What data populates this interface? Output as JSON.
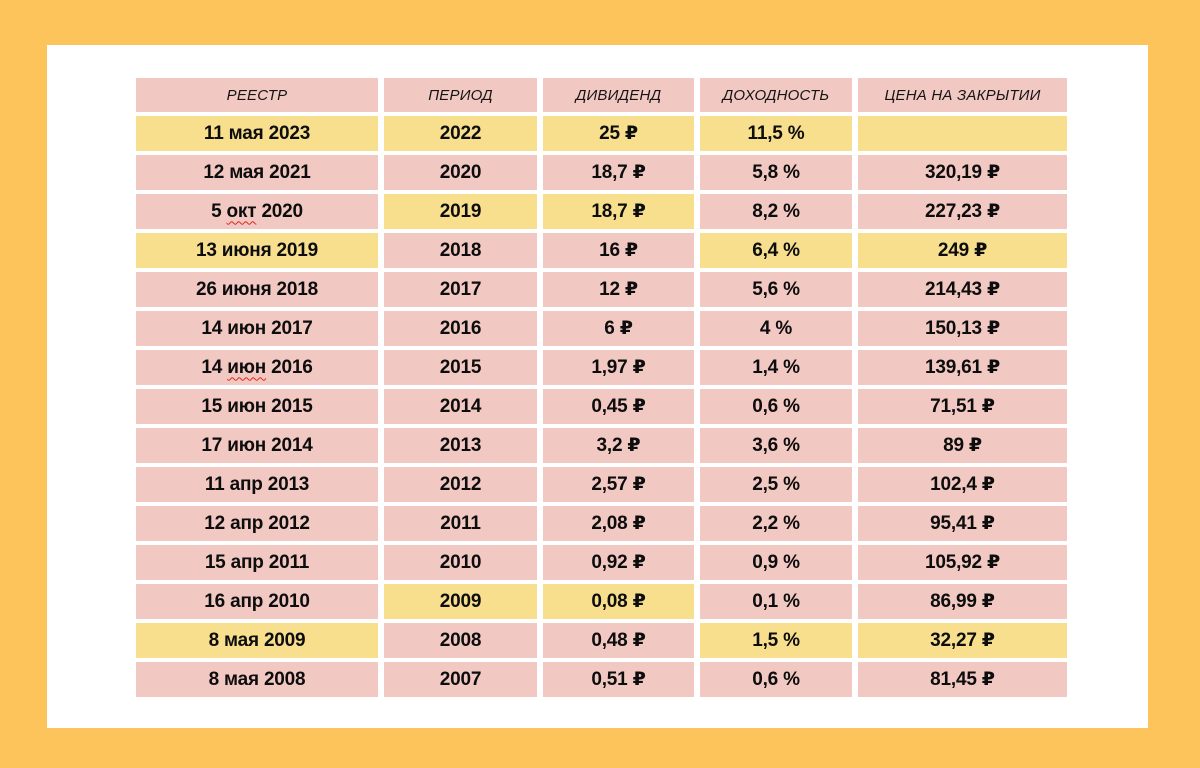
{
  "chart_data": {
    "type": "table",
    "columns": [
      "РЕЕСТР",
      "ПЕРИОД",
      "ДИВИДЕНД",
      "ДОХОДНОСТЬ",
      "ЦЕНА НА ЗАКРЫТИИ"
    ],
    "rows": [
      {
        "registry": "11 мая 2023",
        "period": "2022",
        "dividend": "25 ₽",
        "yield_pct": "11,5 %",
        "close": "",
        "highlight": [
          "y",
          "y",
          "y",
          "y",
          "y"
        ]
      },
      {
        "registry": "12 мая 2021",
        "period": "2020",
        "dividend": "18,7 ₽",
        "yield_pct": "5,8 %",
        "close": "320,19 ₽",
        "highlight": [
          "p",
          "p",
          "p",
          "p",
          "p"
        ]
      },
      {
        "registry": "5 окт 2020",
        "wavy_word": "окт",
        "period": "2019",
        "dividend": "18,7 ₽",
        "yield_pct": "8,2 %",
        "close": "227,23 ₽",
        "highlight": [
          "p",
          "y",
          "y",
          "p",
          "p"
        ]
      },
      {
        "registry": "13 июня 2019",
        "period": "2018",
        "dividend": "16 ₽",
        "yield_pct": "6,4 %",
        "close": "249 ₽",
        "highlight": [
          "y",
          "p",
          "p",
          "y",
          "y"
        ]
      },
      {
        "registry": "26 июня 2018",
        "period": "2017",
        "dividend": "12 ₽",
        "yield_pct": "5,6 %",
        "close": "214,43 ₽",
        "highlight": [
          "p",
          "p",
          "p",
          "p",
          "p"
        ]
      },
      {
        "registry": "14 июн 2017",
        "period": "2016",
        "dividend": "6 ₽",
        "yield_pct": "4 %",
        "close": "150,13 ₽",
        "highlight": [
          "p",
          "p",
          "p",
          "p",
          "p"
        ]
      },
      {
        "registry": "14 июн 2016",
        "wavy_word": "июн",
        "period": "2015",
        "dividend": "1,97 ₽",
        "yield_pct": "1,4 %",
        "close": "139,61 ₽",
        "highlight": [
          "p",
          "p",
          "p",
          "p",
          "p"
        ]
      },
      {
        "registry": "15 июн 2015",
        "period": "2014",
        "dividend": "0,45 ₽",
        "yield_pct": "0,6 %",
        "close": "71,51 ₽",
        "highlight": [
          "p",
          "p",
          "p",
          "p",
          "p"
        ]
      },
      {
        "registry": "17 июн 2014",
        "period": "2013",
        "dividend": "3,2 ₽",
        "yield_pct": "3,6 %",
        "close": "89 ₽",
        "highlight": [
          "p",
          "p",
          "p",
          "p",
          "p"
        ]
      },
      {
        "registry": "11 апр 2013",
        "period": "2012",
        "dividend": "2,57 ₽",
        "yield_pct": "2,5 %",
        "close": "102,4 ₽",
        "highlight": [
          "p",
          "p",
          "p",
          "p",
          "p"
        ]
      },
      {
        "registry": "12 апр 2012",
        "period": "2011",
        "dividend": "2,08 ₽",
        "yield_pct": "2,2 %",
        "close": "95,41 ₽",
        "highlight": [
          "p",
          "p",
          "p",
          "p",
          "p"
        ]
      },
      {
        "registry": "15 апр 2011",
        "period": "2010",
        "dividend": "0,92 ₽",
        "yield_pct": "0,9 %",
        "close": "105,92 ₽",
        "highlight": [
          "p",
          "p",
          "p",
          "p",
          "p"
        ]
      },
      {
        "registry": "16 апр 2010",
        "period": "2009",
        "dividend": "0,08 ₽",
        "yield_pct": "0,1 %",
        "close": "86,99 ₽",
        "highlight": [
          "p",
          "y",
          "y",
          "p",
          "p"
        ]
      },
      {
        "registry": "8 мая 2009",
        "period": "2008",
        "dividend": "0,48 ₽",
        "yield_pct": "1,5 %",
        "close": "32,27 ₽",
        "highlight": [
          "y",
          "p",
          "p",
          "y",
          "y"
        ]
      },
      {
        "registry": "8 мая 2008",
        "period": "2007",
        "dividend": "0,51 ₽",
        "yield_pct": "0,6 %",
        "close": "81,45 ₽",
        "highlight": [
          "p",
          "p",
          "p",
          "p",
          "p"
        ]
      }
    ],
    "layout": {
      "grid": "off",
      "legend": "none"
    }
  },
  "colors": {
    "page_background": "#FDC45C",
    "card_background": "#FFFFFF",
    "cell_pink": "#F2C8C3",
    "cell_yellow": "#F7DF8D",
    "text": "#0d0d0d",
    "spellcheck_underline": "#E2261A"
  }
}
